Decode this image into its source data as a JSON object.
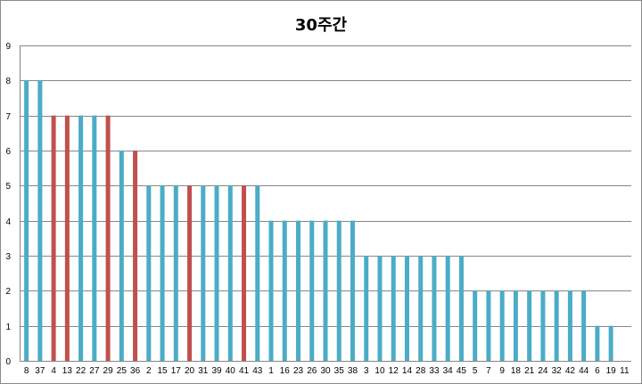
{
  "chart_data": {
    "type": "bar",
    "title": "30주간",
    "xlabel": "",
    "ylabel": "",
    "ylim": [
      0,
      9
    ],
    "yticks": [
      0,
      1,
      2,
      3,
      4,
      5,
      6,
      7,
      8,
      9
    ],
    "grid": true,
    "legend": "none",
    "categories": [
      "8",
      "37",
      "4",
      "13",
      "22",
      "27",
      "29",
      "25",
      "36",
      "2",
      "15",
      "17",
      "20",
      "31",
      "39",
      "40",
      "41",
      "43",
      "1",
      "16",
      "23",
      "26",
      "30",
      "35",
      "38",
      "3",
      "10",
      "12",
      "14",
      "28",
      "33",
      "34",
      "45",
      "5",
      "7",
      "9",
      "18",
      "21",
      "24",
      "32",
      "42",
      "44",
      "6",
      "19",
      "11"
    ],
    "values": [
      8,
      8,
      7,
      7,
      7,
      7,
      7,
      6,
      6,
      5,
      5,
      5,
      5,
      5,
      5,
      5,
      5,
      5,
      4,
      4,
      4,
      4,
      4,
      4,
      4,
      3,
      3,
      3,
      3,
      3,
      3,
      3,
      3,
      2,
      2,
      2,
      2,
      2,
      2,
      2,
      2,
      2,
      1,
      1,
      0
    ],
    "highlight": [
      false,
      false,
      true,
      true,
      false,
      false,
      true,
      false,
      true,
      false,
      false,
      false,
      true,
      false,
      false,
      false,
      true,
      false,
      false,
      false,
      false,
      false,
      false,
      false,
      false,
      false,
      false,
      false,
      false,
      false,
      false,
      false,
      false,
      false,
      false,
      false,
      false,
      false,
      false,
      false,
      false,
      false,
      false,
      false,
      false
    ],
    "colors": {
      "normal": "#4bacc6",
      "highlight": "#c0504d",
      "grid": "#868686",
      "axis": "#868686"
    }
  }
}
